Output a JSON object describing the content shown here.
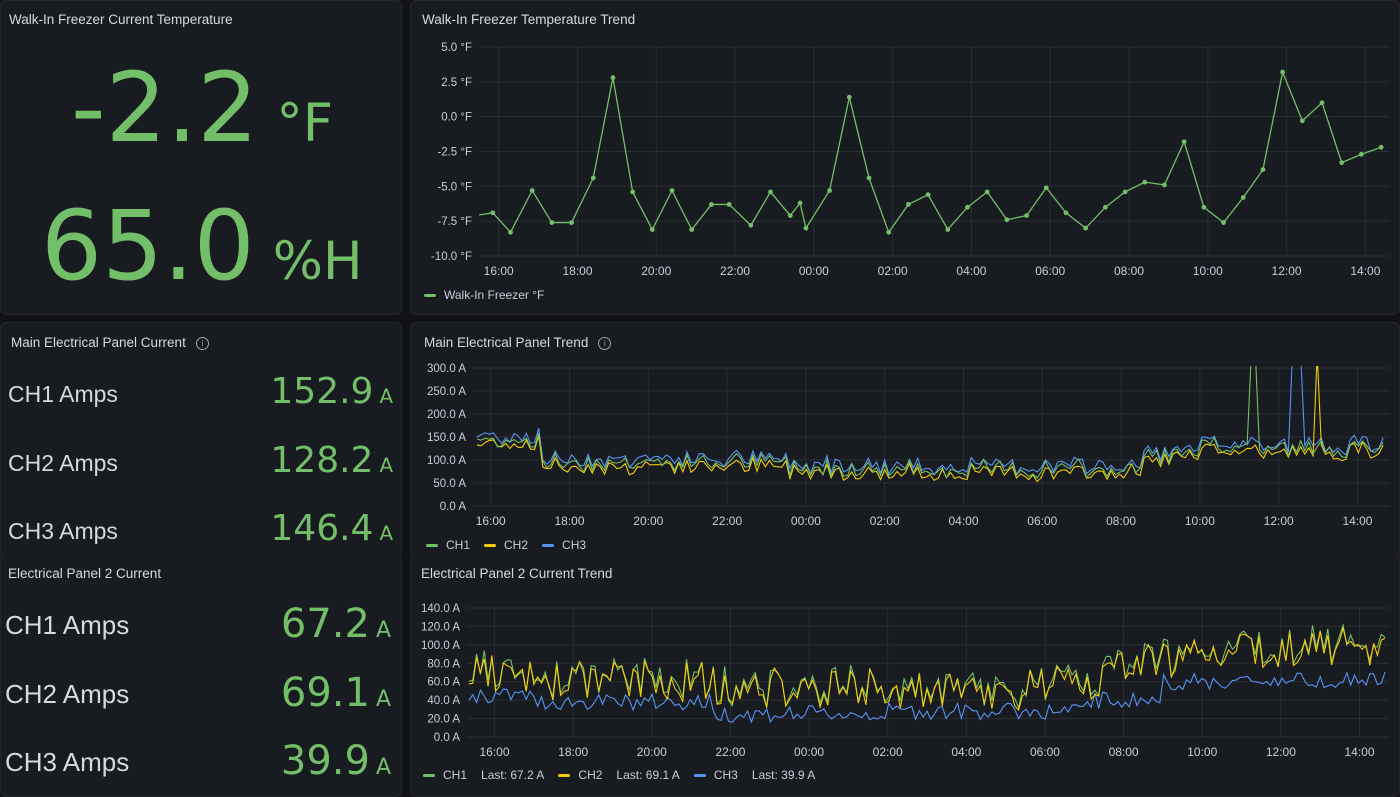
{
  "colors": {
    "green": "#73bf69",
    "yellow": "#f2cc0c",
    "blue": "#5794f2",
    "grid": "#2a2d33",
    "axis": "#ccccdc"
  },
  "freezer_stat": {
    "title": "Walk-In Freezer Current Temperature",
    "temp_value": "-2.2",
    "temp_unit": "°F",
    "humidity_value": "65.0",
    "humidity_unit": "%H"
  },
  "freezer_trend": {
    "title": "Walk-In Freezer Temperature Trend",
    "legend": "Walk-In Freezer °F"
  },
  "main_panel_stat": {
    "title": "Main Electrical Panel Current",
    "info_icon": "info-icon",
    "rows": [
      {
        "label": "CH1 Amps",
        "value": "152.9",
        "unit": "A"
      },
      {
        "label": "CH2 Amps",
        "value": "128.2",
        "unit": "A"
      },
      {
        "label": "CH3 Amps",
        "value": "146.4",
        "unit": "A"
      }
    ]
  },
  "main_panel_trend": {
    "title": "Main Electrical Panel Trend",
    "info_icon": "info-icon",
    "legend": [
      "CH1",
      "CH2",
      "CH3"
    ]
  },
  "panel2_stat": {
    "title": "Electrical Panel 2 Current",
    "rows": [
      {
        "label": "CH1 Amps",
        "value": "67.2",
        "unit": "A"
      },
      {
        "label": "CH2 Amps",
        "value": "69.1",
        "unit": "A"
      },
      {
        "label": "CH3 Amps",
        "value": "39.9",
        "unit": "A"
      }
    ]
  },
  "panel2_trend": {
    "title": "Electrical Panel 2 Current Trend",
    "legend": [
      {
        "name": "CH1",
        "last": "Last: 67.2 A"
      },
      {
        "name": "CH2",
        "last": "Last: 69.1 A"
      },
      {
        "name": "CH3",
        "last": "Last: 39.9 A"
      }
    ]
  },
  "chart_data": [
    {
      "id": "freezer",
      "type": "line",
      "title": "Walk-In Freezer Temperature Trend",
      "x_start": 15.5,
      "x_end": 14.6,
      "x_ticks": [
        "16:00",
        "18:00",
        "20:00",
        "22:00",
        "00:00",
        "02:00",
        "04:00",
        "06:00",
        "08:00",
        "10:00",
        "12:00",
        "14:00"
      ],
      "y_ticks": [
        "5.0 °F",
        "2.5 °F",
        "0.0 °F",
        "-2.5 °F",
        "-5.0 °F",
        "-7.5 °F",
        "-10.0 °F"
      ],
      "ylim": [
        -10,
        5
      ],
      "series": [
        {
          "name": "Walk-In Freezer °F",
          "color": "green",
          "points": true,
          "x": [
            15.4,
            15.85,
            16.3,
            16.85,
            17.35,
            17.85,
            18.4,
            18.9,
            19.4,
            19.9,
            20.4,
            20.9,
            21.4,
            21.85,
            22.4,
            22.9,
            23.4,
            23.65,
            23.8,
            24.4,
            24.9,
            25.4,
            25.9,
            26.4,
            26.9,
            27.4,
            27.9,
            28.4,
            28.9,
            29.4,
            29.9,
            30.4,
            30.9,
            31.4,
            31.9,
            32.4,
            32.9,
            33.4,
            33.9,
            34.4,
            34.9,
            35.4,
            35.9,
            36.4,
            36.9,
            37.4,
            37.9,
            38.4
          ],
          "y": [
            -7.1,
            -6.9,
            -8.3,
            -5.3,
            -7.6,
            -7.6,
            -4.4,
            2.8,
            -5.4,
            -8.1,
            -5.3,
            -8.1,
            -6.3,
            -6.3,
            -7.8,
            -5.4,
            -7.1,
            -6.2,
            -8.0,
            -5.3,
            1.4,
            -4.4,
            -8.3,
            -6.3,
            -5.6,
            -8.1,
            -6.5,
            -5.4,
            -7.4,
            -7.1,
            -5.1,
            -6.9,
            -8.0,
            -6.5,
            -5.4,
            -4.7,
            -4.9,
            -1.8,
            -6.5,
            -7.6,
            -5.8,
            -3.8,
            3.2,
            -0.3,
            1.0,
            -3.3,
            -2.7,
            -2.2
          ]
        }
      ]
    },
    {
      "id": "main",
      "type": "line",
      "title": "Main Electrical Panel Trend",
      "x_start": 15.55,
      "x_end": 14.8,
      "x_ticks": [
        "16:00",
        "18:00",
        "20:00",
        "22:00",
        "00:00",
        "02:00",
        "04:00",
        "06:00",
        "08:00",
        "10:00",
        "12:00",
        "14:00"
      ],
      "y_ticks": [
        "300.0 A",
        "250.0 A",
        "200.0 A",
        "150.0 A",
        "100.0 A",
        "50.0 A",
        "0.0 A"
      ],
      "ylim": [
        0,
        300
      ],
      "series": [
        {
          "name": "CH1",
          "color": "green"
        },
        {
          "name": "CH2",
          "color": "yellow"
        },
        {
          "name": "CH3",
          "color": "blue"
        }
      ]
    },
    {
      "id": "panel2",
      "type": "line",
      "title": "Electrical Panel 2 Current Trend",
      "x_start": 15.3,
      "x_end": 14.75,
      "x_ticks": [
        "16:00",
        "18:00",
        "20:00",
        "22:00",
        "00:00",
        "02:00",
        "04:00",
        "06:00",
        "08:00",
        "10:00",
        "12:00",
        "14:00"
      ],
      "y_ticks": [
        "140.0 A",
        "120.0 A",
        "100.0 A",
        "80.0 A",
        "60.0 A",
        "40.0 A",
        "20.0 A",
        "0.0 A"
      ],
      "ylim": [
        0,
        140
      ],
      "series": [
        {
          "name": "CH1",
          "color": "green"
        },
        {
          "name": "CH2",
          "color": "yellow"
        },
        {
          "name": "CH3",
          "color": "blue"
        }
      ]
    }
  ]
}
